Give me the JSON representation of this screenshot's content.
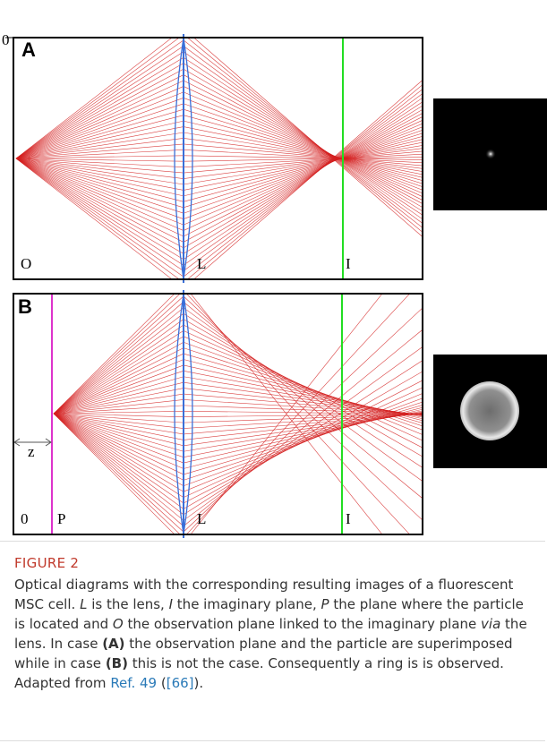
{
  "figure": {
    "panels": [
      {
        "label": "A",
        "axis_zero": "0",
        "planes": [
          "O",
          "L",
          "I"
        ]
      },
      {
        "label": "B",
        "planes": [
          "0",
          "P",
          "L",
          "I"
        ],
        "distance": "z"
      }
    ]
  },
  "caption": {
    "label": "FIGURE 2",
    "segments": [
      "Optical diagrams with the corresponding resulting images of a fluorescent MSC cell. ",
      "L",
      " is the lens, ",
      "I",
      " the imaginary plane, ",
      "P",
      " the plane where the particle is located and ",
      "O",
      " the observation plane linked to the imaginary plane ",
      "via",
      " the lens. In case ",
      "(A)",
      " the observation plane and the particle are superimposed while in case ",
      "(B)",
      " this is not the case. Consequently a ring is is observed. Adapted from ",
      "Ref. 49",
      " (",
      "[66]",
      ")."
    ]
  }
}
